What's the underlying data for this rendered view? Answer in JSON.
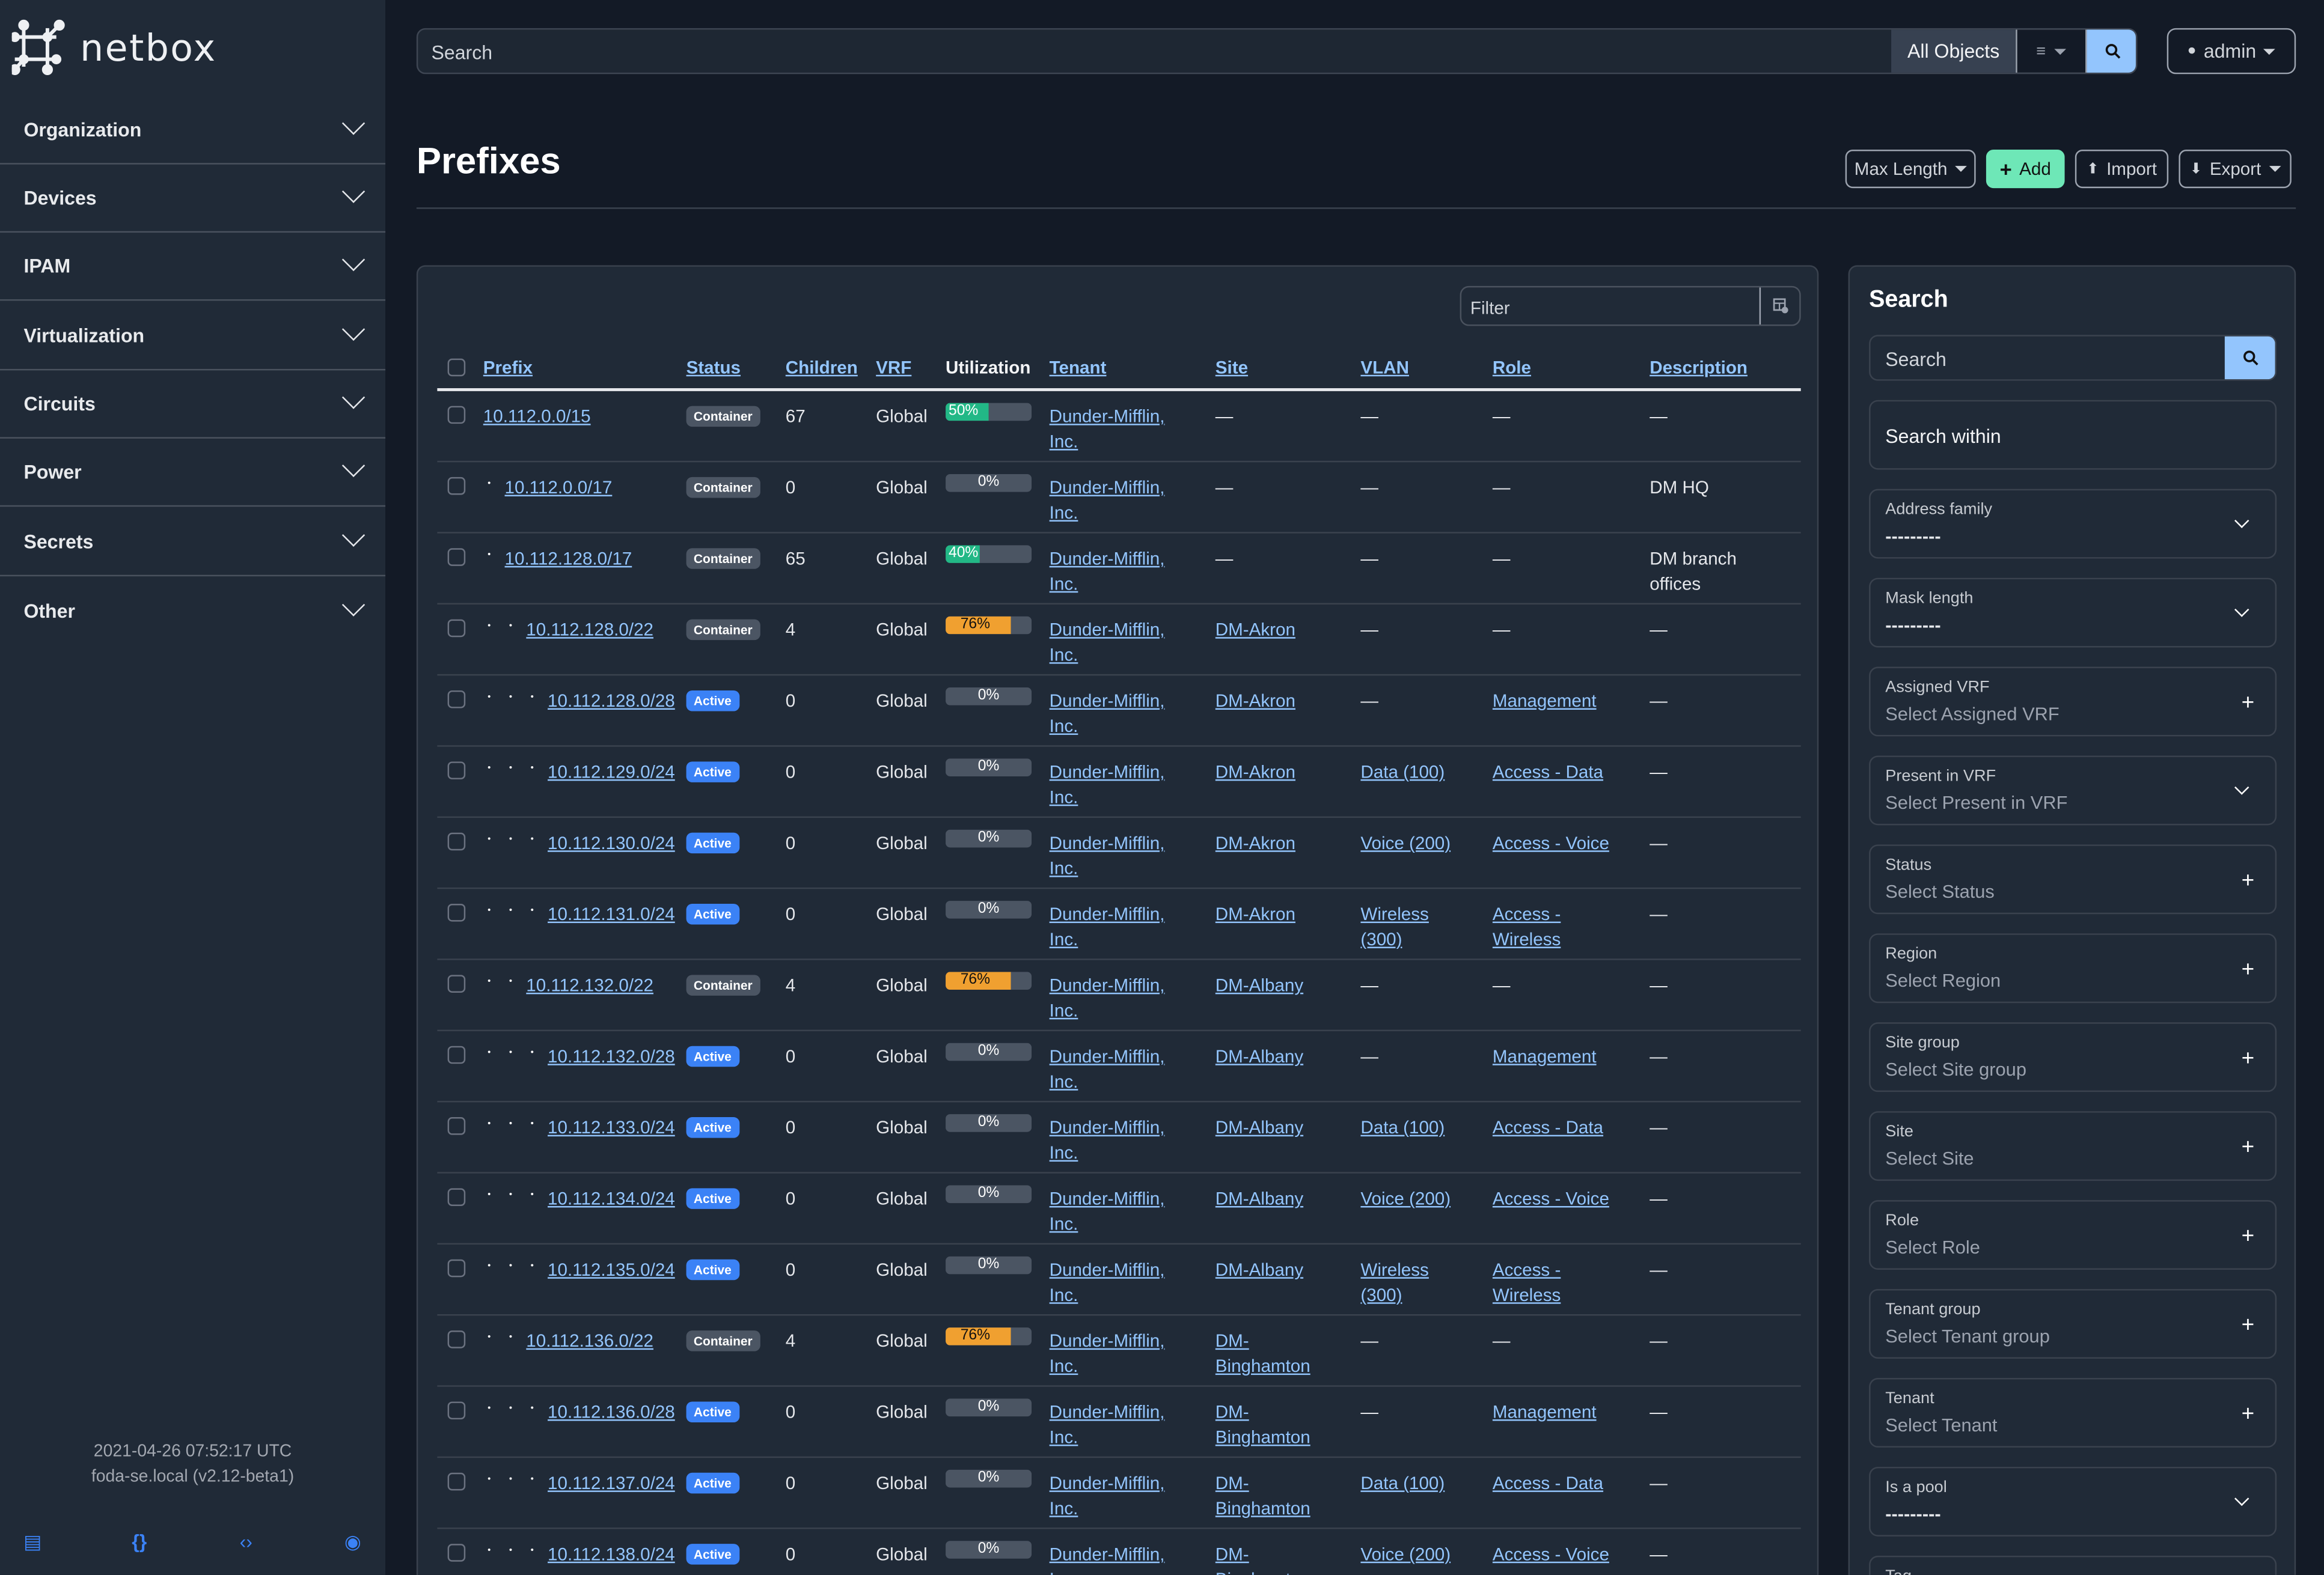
{
  "app": {
    "logo_text": "netbox"
  },
  "sidebar": {
    "items": [
      {
        "label": "Organization"
      },
      {
        "label": "Devices"
      },
      {
        "label": "IPAM"
      },
      {
        "label": "Virtualization"
      },
      {
        "label": "Circuits"
      },
      {
        "label": "Power"
      },
      {
        "label": "Secrets"
      },
      {
        "label": "Other"
      }
    ],
    "footer": {
      "timestamp": "2021-04-26 07:52:17 UTC",
      "host": "foda-se.local (v2.12-beta1)",
      "icons": [
        "book-icon",
        "braces-icon",
        "code-icon",
        "lifebuoy-icon"
      ]
    }
  },
  "topbar": {
    "search_placeholder": "Search",
    "scope": "All Objects",
    "user": "admin"
  },
  "page": {
    "title": "Prefixes",
    "buttons": {
      "max_length": "Max Length",
      "add": "Add",
      "import": "Import",
      "export": "Export"
    }
  },
  "table": {
    "filter_placeholder": "Filter",
    "columns": [
      "Prefix",
      "Status",
      "Children",
      "VRF",
      "Utilization",
      "Tenant",
      "Site",
      "VLAN",
      "Role",
      "Description"
    ],
    "rows": [
      {
        "prefix": "10.112.0.0/15",
        "depth": 0,
        "status": "Container",
        "children": "67",
        "vrf": "Global",
        "utilization": 50,
        "tenant": "Dunder-Mifflin, Inc.",
        "site": "—",
        "vlan": "—",
        "role": "—",
        "description": "—"
      },
      {
        "prefix": "10.112.0.0/17",
        "depth": 1,
        "status": "Container",
        "children": "0",
        "vrf": "Global",
        "utilization": 0,
        "tenant": "Dunder-Mifflin, Inc.",
        "site": "—",
        "vlan": "—",
        "role": "—",
        "description": "DM HQ"
      },
      {
        "prefix": "10.112.128.0/17",
        "depth": 1,
        "status": "Container",
        "children": "65",
        "vrf": "Global",
        "utilization": 40,
        "tenant": "Dunder-Mifflin, Inc.",
        "site": "—",
        "vlan": "—",
        "role": "—",
        "description": "DM branch offices"
      },
      {
        "prefix": "10.112.128.0/22",
        "depth": 2,
        "status": "Container",
        "children": "4",
        "vrf": "Global",
        "utilization": 76,
        "tenant": "Dunder-Mifflin, Inc.",
        "site": "DM-Akron",
        "vlan": "—",
        "role": "—",
        "description": "—"
      },
      {
        "prefix": "10.112.128.0/28",
        "depth": 3,
        "status": "Active",
        "children": "0",
        "vrf": "Global",
        "utilization": 0,
        "tenant": "Dunder-Mifflin, Inc.",
        "site": "DM-Akron",
        "vlan": "—",
        "role": "Management",
        "description": "—"
      },
      {
        "prefix": "10.112.129.0/24",
        "depth": 3,
        "status": "Active",
        "children": "0",
        "vrf": "Global",
        "utilization": 0,
        "tenant": "Dunder-Mifflin, Inc.",
        "site": "DM-Akron",
        "vlan": "Data (100)",
        "role": "Access - Data",
        "description": "—"
      },
      {
        "prefix": "10.112.130.0/24",
        "depth": 3,
        "status": "Active",
        "children": "0",
        "vrf": "Global",
        "utilization": 0,
        "tenant": "Dunder-Mifflin, Inc.",
        "site": "DM-Akron",
        "vlan": "Voice (200)",
        "role": "Access - Voice",
        "description": "—"
      },
      {
        "prefix": "10.112.131.0/24",
        "depth": 3,
        "status": "Active",
        "children": "0",
        "vrf": "Global",
        "utilization": 0,
        "tenant": "Dunder-Mifflin, Inc.",
        "site": "DM-Akron",
        "vlan": "Wireless (300)",
        "role": "Access - Wireless",
        "description": "—"
      },
      {
        "prefix": "10.112.132.0/22",
        "depth": 2,
        "status": "Container",
        "children": "4",
        "vrf": "Global",
        "utilization": 76,
        "tenant": "Dunder-Mifflin, Inc.",
        "site": "DM-Albany",
        "vlan": "—",
        "role": "—",
        "description": "—"
      },
      {
        "prefix": "10.112.132.0/28",
        "depth": 3,
        "status": "Active",
        "children": "0",
        "vrf": "Global",
        "utilization": 0,
        "tenant": "Dunder-Mifflin, Inc.",
        "site": "DM-Albany",
        "vlan": "—",
        "role": "Management",
        "description": "—"
      },
      {
        "prefix": "10.112.133.0/24",
        "depth": 3,
        "status": "Active",
        "children": "0",
        "vrf": "Global",
        "utilization": 0,
        "tenant": "Dunder-Mifflin, Inc.",
        "site": "DM-Albany",
        "vlan": "Data (100)",
        "role": "Access - Data",
        "description": "—"
      },
      {
        "prefix": "10.112.134.0/24",
        "depth": 3,
        "status": "Active",
        "children": "0",
        "vrf": "Global",
        "utilization": 0,
        "tenant": "Dunder-Mifflin, Inc.",
        "site": "DM-Albany",
        "vlan": "Voice (200)",
        "role": "Access - Voice",
        "description": "—"
      },
      {
        "prefix": "10.112.135.0/24",
        "depth": 3,
        "status": "Active",
        "children": "0",
        "vrf": "Global",
        "utilization": 0,
        "tenant": "Dunder-Mifflin, Inc.",
        "site": "DM-Albany",
        "vlan": "Wireless (300)",
        "role": "Access - Wireless",
        "description": "—"
      },
      {
        "prefix": "10.112.136.0/22",
        "depth": 2,
        "status": "Container",
        "children": "4",
        "vrf": "Global",
        "utilization": 76,
        "tenant": "Dunder-Mifflin, Inc.",
        "site": "DM-Binghamton",
        "vlan": "—",
        "role": "—",
        "description": "—"
      },
      {
        "prefix": "10.112.136.0/28",
        "depth": 3,
        "status": "Active",
        "children": "0",
        "vrf": "Global",
        "utilization": 0,
        "tenant": "Dunder-Mifflin, Inc.",
        "site": "DM-Binghamton",
        "vlan": "—",
        "role": "Management",
        "description": "—"
      },
      {
        "prefix": "10.112.137.0/24",
        "depth": 3,
        "status": "Active",
        "children": "0",
        "vrf": "Global",
        "utilization": 0,
        "tenant": "Dunder-Mifflin, Inc.",
        "site": "DM-Binghamton",
        "vlan": "Data (100)",
        "role": "Access - Data",
        "description": "—"
      },
      {
        "prefix": "10.112.138.0/24",
        "depth": 3,
        "status": "Active",
        "children": "0",
        "vrf": "Global",
        "utilization": 0,
        "tenant": "Dunder-Mifflin, Inc.",
        "site": "DM-Binghamton",
        "vlan": "Voice (200)",
        "role": "Access - Voice",
        "description": "—"
      }
    ]
  },
  "search_panel": {
    "title": "Search",
    "search_placeholder": "Search",
    "search_within": "Search within",
    "fields": [
      {
        "label": "Address family",
        "value": "---------",
        "control": "chevron"
      },
      {
        "label": "Mask length",
        "value": "---------",
        "control": "chevron"
      },
      {
        "label": "Assigned VRF",
        "value": "Select Assigned VRF",
        "control": "plus"
      },
      {
        "label": "Present in VRF",
        "value": "Select Present in VRF",
        "control": "chevron"
      },
      {
        "label": "Status",
        "value": "Select Status",
        "control": "plus"
      },
      {
        "label": "Region",
        "value": "Select Region",
        "control": "plus"
      },
      {
        "label": "Site group",
        "value": "Select Site group",
        "control": "plus"
      },
      {
        "label": "Site",
        "value": "Select Site",
        "control": "plus"
      },
      {
        "label": "Role",
        "value": "Select Role",
        "control": "plus"
      },
      {
        "label": "Tenant group",
        "value": "Select Tenant group",
        "control": "plus"
      },
      {
        "label": "Tenant",
        "value": "Select Tenant",
        "control": "plus"
      },
      {
        "label": "Is a pool",
        "value": "---------",
        "control": "chevron"
      },
      {
        "label": "Tag",
        "value": "",
        "control": "plus"
      }
    ]
  },
  "colors": {
    "sidebar_bg": "#202a37",
    "page_bg": "#131a26",
    "link": "#93c5fd",
    "active_badge": "#3b82f6",
    "container_badge": "#4b5563",
    "util_low": "#22b886",
    "util_high": "#f0a030",
    "add_button": "#6ee7b7"
  }
}
